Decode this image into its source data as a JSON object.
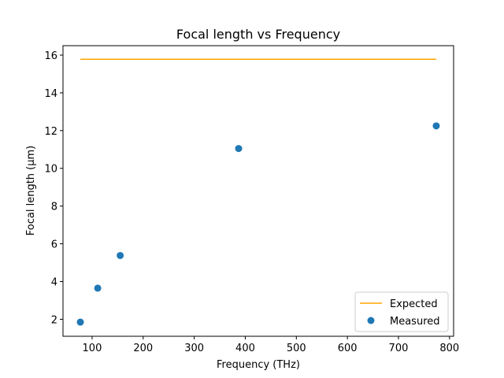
{
  "chart_data": {
    "type": "scatter",
    "title": "Focal length vs Frequency",
    "xlabel": "Frequency (THz)",
    "ylabel": "Focal length (μm)",
    "xlim": [
      43,
      808
    ],
    "ylim": [
      1.1,
      16.5
    ],
    "xticks": [
      100,
      200,
      300,
      400,
      500,
      600,
      700,
      800
    ],
    "yticks": [
      2,
      4,
      6,
      8,
      10,
      12,
      14,
      16
    ],
    "grid": false,
    "legend_position": "lower-right",
    "series": [
      {
        "name": "Expected",
        "kind": "line",
        "color": "#ffa500",
        "x": [
          77,
          774
        ],
        "y": [
          15.78,
          15.78
        ]
      },
      {
        "name": "Measured",
        "kind": "scatter",
        "color": "#1f77b4",
        "x": [
          77,
          111,
          155,
          387,
          774
        ],
        "y": [
          1.85,
          3.65,
          5.38,
          11.05,
          12.25
        ]
      }
    ]
  }
}
